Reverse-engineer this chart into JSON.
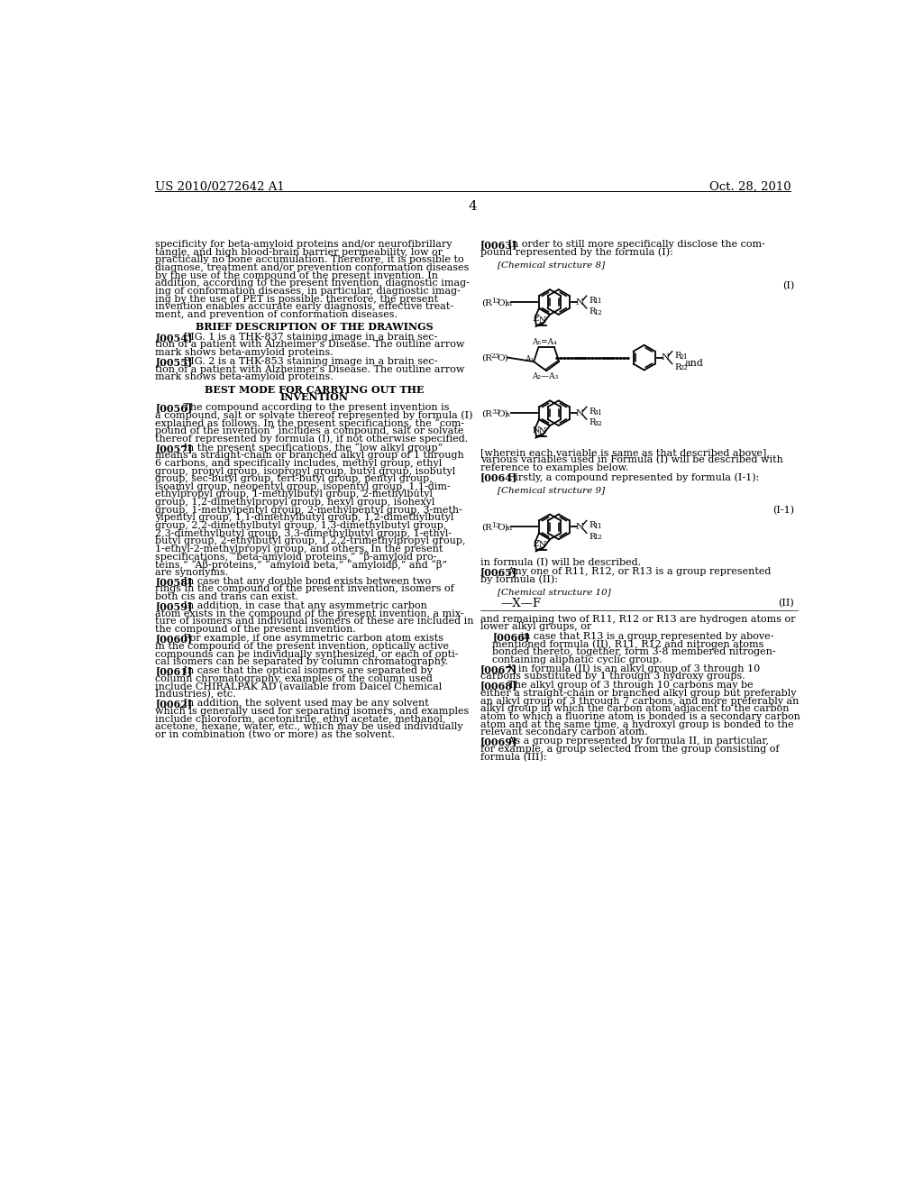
{
  "page_number": "4",
  "header_left": "US 2010/0272642 A1",
  "header_right": "Oct. 28, 2010",
  "background_color": "#ffffff",
  "text_color": "#000000",
  "left_paragraphs": [
    "specificity for beta-amyloid proteins and/or neurofibrillary\ntangle, and high blood-brain barrier permeability, low or\npractically no bone accumulation. Therefore, it is possible to\ndiagnose, treatment and/or prevention conformation diseases\nby the use of the compound of the present invention. In\naddition, according to the present invention, diagnostic imag-\ning of conformation diseases, in particular, diagnostic imag-\ning by the use of PET is possible. therefore, the present\ninvention enables accurate early diagnosis, effective treat-\nment, and prevention of conformation diseases.",
    "BRIEF DESCRIPTION OF THE DRAWINGS",
    "[0054]   FIG. 1 is a THK-837 staining image in a brain sec-\ntion of a patient with Alzheimer’s Disease. The outline arrow\nmark shows beta-amyloid proteins.",
    "[0055]   FIG. 2 is a THK-853 staining image in a brain sec-\ntion of a patient with Alzheimer’s Disease. The outline arrow\nmark shows beta-amyloid proteins.",
    "BEST MODE FOR CARRYING OUT THE\nINVENTION",
    "[0056]   The compound according to the present invention is\na compound, salt or solvate thereof represented by formula (I)\nexplained as follows. In the present specifications, the “com-\npound of the invention” includes a compound, salt or solvate\nthereof represented by formula (I), if not otherwise specified.",
    "[0057]   In the present specifications, the “low alkyl group”\nmeans a straight-chain or branched alkyl group of 1 through\n6 carbons, and specifically includes, methyl group, ethyl\ngroup, propyl group, isopropyl group, butyl group, isobutyl\ngroup, sec-butyl group, tert-butyl group, pentyl group,\nisoamyl group, neopentyl group, isopentyl group, 1,1-dim-\nethylpropyl group, 1-methylbutyl group, 2-methylbutyl\ngroup, 1,2-dimethylpropyl group, hexyl group, isohexyl\ngroup, 1-methylpentyl group, 2-methylpentyl group, 3-meth-\nylpentyl group, 1,1-dimethylbutyl group, 1,2-dimethylbutyl\ngroup, 2,2-dimethylbutyl group, 1,3-dimethylbutyl group,\n2,3-dimethylbutyl group, 3,3-dimethylbutyl group, 1-ethyl-\nbutyl group, 2-ethylbutyl group, 1,2,2-trimethylpropyl group,\n1-ethyl-2-methylpropyl group, and others. In the present\nspecifications, “beta-amyloid proteins,” “β-amyloid pro-\nteins,” “Aβ-proteins,” “amyloid beta,” “amyloidβ,” and “β”\nare synonyms.",
    "[0058]   In case that any double bond exists between two\nrings in the compound of the present invention, isomers of\nboth cis and trans can exist.",
    "[0059]   In addition, in case that any asymmetric carbon\natom exists in the compound of the present invention, a mix-\nture of isomers and individual isomers of these are included in\nthe compound of the present invention.",
    "[0060]   For example, if one asymmetric carbon atom exists\nin the compound of the present invention, optically active\ncompounds can be individually synthesized, or each of opti-\ncal isomers can be separated by column chromatography.",
    "[0061]   In case that the optical isomers are separated by\ncolumn chromatography, examples of the column used\ninclude CHIRALPAK AD (available from Daicel Chemical\nIndustries), etc.",
    "[0062]   In addition, the solvent used may be any solvent\nwhich is generally used for separating isomers, and examples\ninclude chloroform, acetonitrile, ethyl acetate, methanol,\nacetone, hexane, water, etc., which may be used individually\nor in combination (two or more) as the solvent."
  ],
  "right_paragraphs": [
    "[0063]   In order to still more specifically disclose the com-\npound represented by the formula (I):",
    "[Chemical structure 8]",
    "[wherein each variable is same as that described above],\nvarious variables used in Formula (I) will be described with\nreference to examples below.",
    "[0064]   Firstly, a compound represented by formula (I-1):",
    "[Chemical structure 9]",
    "in formula (I) will be described.",
    "[0065]   Any one of R11, R12, or R13 is a group represented\nby formula (II):",
    "[Chemical structure 10]",
    "—X—F",
    "and remaining two of R11, R12 or R13 are hydrogen atoms or\nlower alkyl groups, or",
    "[0066]   in case that R13 is a group represented by above-\nmentioned formula (II), R11, R12 and nitrogen atoms\nbonded thereto, together, form 3-8 membered nitrogen-\ncontaining aliphatic cyclic group.",
    "[0067]   X in formula (II) is an alkyl group of 3 through 10\ncarbons substituted by 1 through 3 hydroxy groups.",
    "[0068]   The alkyl group of 3 through 10 carbons may be\neither a straight-chain or branched alkyl group but preferably\nan alkyl group of 3 through 7 carbons, and more preferably an\nalkyl group in which the carbon atom adjacent to the carbon\natom to which a fluorine atom is bonded is a secondary carbon\natom and at the same time, a hydroxyl group is bonded to the\nrelevant secondary carbon atom.",
    "[0069]   As a group represented by formula II, in particular,\nfor example, a group selected from the group consisting of\nformula (III):"
  ]
}
